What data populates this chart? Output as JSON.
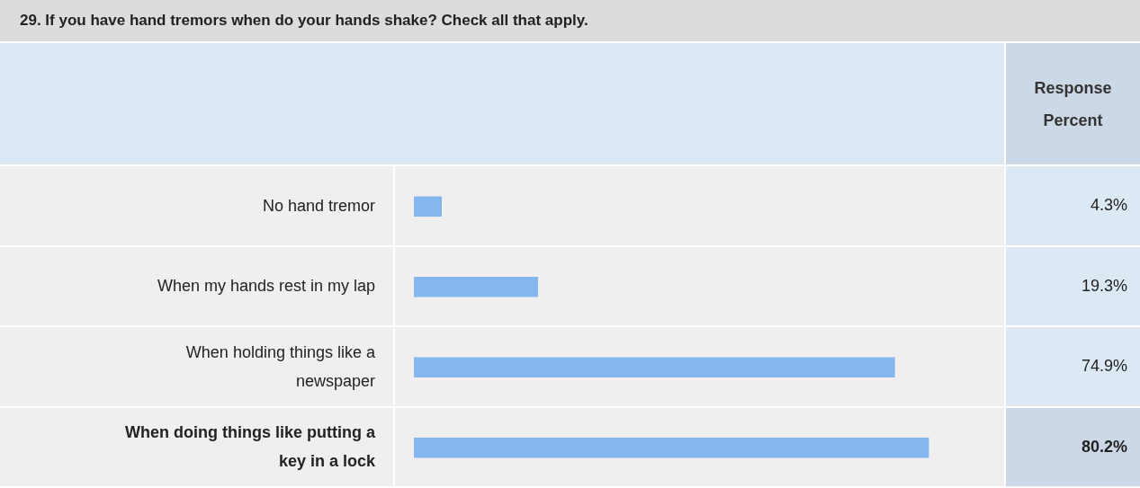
{
  "chart_data": {
    "type": "bar",
    "orientation": "horizontal",
    "title": "29. If you have hand tremors when do your hands shake? Check all that apply.",
    "annotations": [
      "Response Percent"
    ],
    "categories": [
      "No hand tremor",
      "When my hands rest in my lap",
      "When holding things like a newspaper",
      "When doing things like putting a key in a lock"
    ],
    "values": [
      4.3,
      19.3,
      74.9,
      80.2
    ],
    "value_labels": [
      "4.3%",
      "19.3%",
      "74.9%",
      "80.2%"
    ],
    "color": "#86b6ee",
    "tick_labels": "y",
    "legend": false
  }
}
